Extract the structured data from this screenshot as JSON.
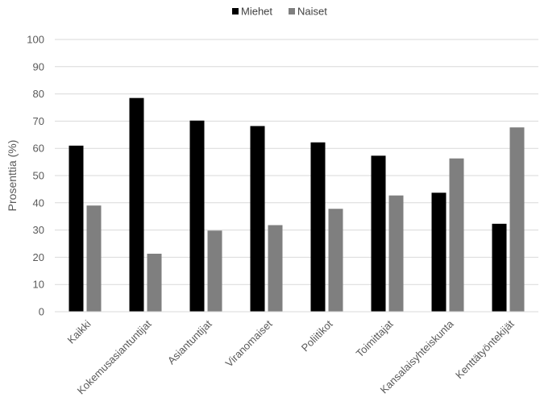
{
  "chart_data": {
    "type": "bar",
    "title": "",
    "xlabel": "",
    "ylabel": "Prosenttia (%)",
    "ylim": [
      0,
      100
    ],
    "yticks": [
      0,
      10,
      20,
      30,
      40,
      50,
      60,
      70,
      80,
      90,
      100
    ],
    "grid": true,
    "legend_position": "top-center",
    "categories": [
      "Kaikki",
      "Kokemusasiantuntijat",
      "Asiantuntijat",
      "Viranomaiset",
      "Poliitikot",
      "Toimittajat",
      "Kansalaisyhteiskunta",
      "Kenttätyöntekijät"
    ],
    "series": [
      {
        "name": "Miehet",
        "color": "#000000",
        "values": [
          61,
          78.5,
          70.2,
          68.2,
          62.2,
          57.3,
          43.7,
          32.3
        ]
      },
      {
        "name": "Naiset",
        "color": "#7f7f7f",
        "values": [
          39,
          21.3,
          29.8,
          31.8,
          37.8,
          42.7,
          56.3,
          67.7
        ]
      }
    ]
  }
}
